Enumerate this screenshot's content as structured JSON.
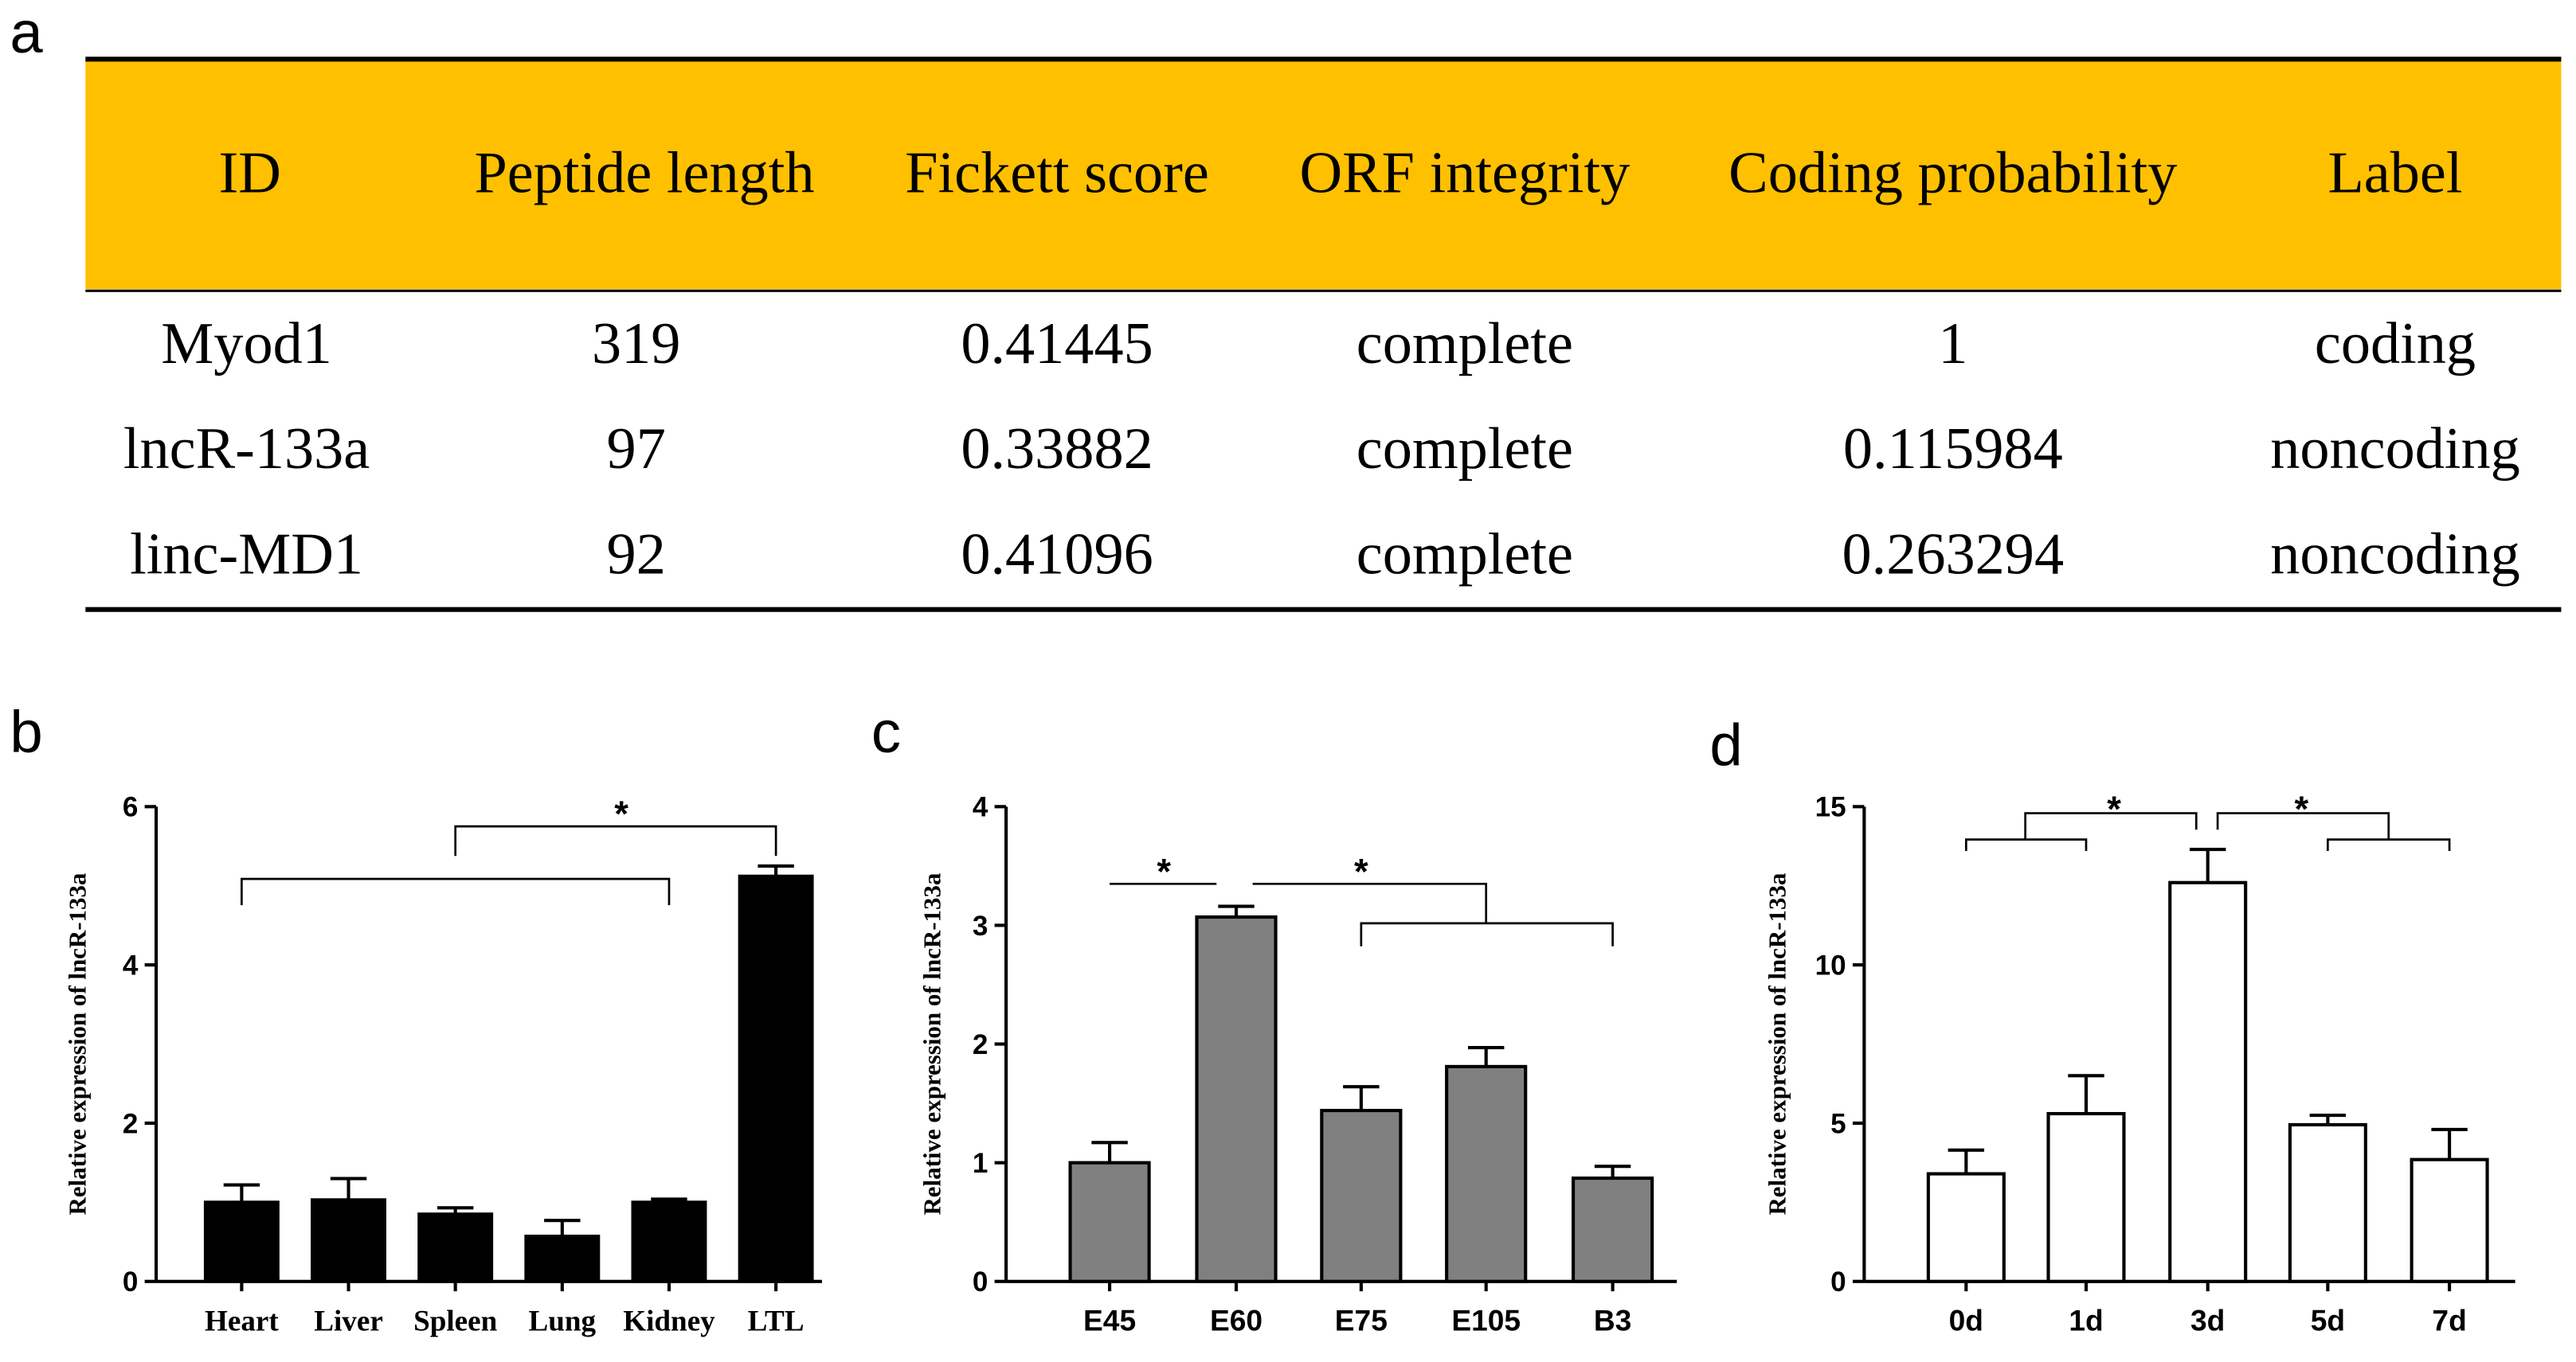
{
  "panel_labels": {
    "a": "a",
    "b": "b",
    "c": "c",
    "d": "d"
  },
  "colors": {
    "header_bg": "#FFC000",
    "bar_b": "#000000",
    "bar_c": "#808080",
    "bar_d": "#FFFFFF"
  },
  "table": {
    "headers": [
      "ID",
      "Peptide length",
      "Fickett score",
      "ORF integrity",
      "Coding probability",
      "Label"
    ],
    "rows": [
      [
        "Myod1",
        "319",
        "0.41445",
        "complete",
        "1",
        "coding"
      ],
      [
        "lncR-133a",
        "97",
        "0.33882",
        "complete",
        "0.115984",
        "noncoding"
      ],
      [
        "linc-MD1",
        "92",
        "0.41096",
        "complete",
        "0.263294",
        "noncoding"
      ]
    ]
  },
  "chart_data": [
    {
      "panel": "b",
      "type": "bar",
      "ylabel": "Relative expression of lncR-133a",
      "ylim": [
        0,
        6
      ],
      "yticks": [
        "0",
        "2",
        "4",
        "6"
      ],
      "categories": [
        "Heart",
        "Liver",
        "Spleen",
        "Lung",
        "Kidney",
        "LTL"
      ],
      "values": [
        1.0,
        1.03,
        0.85,
        0.57,
        1.0,
        5.12
      ],
      "errors": [
        0.22,
        0.27,
        0.08,
        0.2,
        0.04,
        0.13
      ],
      "significance": [
        {
          "label": "*",
          "comparison": "Heart–Kidney vs LTL"
        }
      ]
    },
    {
      "panel": "c",
      "type": "bar",
      "ylabel": "Relative expression of lncR-133a",
      "ylim": [
        0,
        4
      ],
      "yticks": [
        "0",
        "1",
        "2",
        "3",
        "4"
      ],
      "categories": [
        "E45",
        "E60",
        "E75",
        "E105",
        "B3"
      ],
      "values": [
        1.0,
        3.07,
        1.44,
        1.81,
        0.87
      ],
      "errors": [
        0.17,
        0.09,
        0.2,
        0.16,
        0.1
      ],
      "significance": [
        {
          "label": "*",
          "comparison": "E45 vs E60"
        },
        {
          "label": "*",
          "comparison": "E60 vs E75–B3"
        }
      ]
    },
    {
      "panel": "d",
      "type": "bar",
      "ylabel": "Relative expression of lncR-133a",
      "ylim": [
        0,
        15
      ],
      "yticks": [
        "0",
        "5",
        "10",
        "15"
      ],
      "categories": [
        "0d",
        "1d",
        "3d",
        "5d",
        "7d"
      ],
      "values": [
        3.4,
        5.3,
        12.6,
        4.95,
        3.85
      ],
      "errors": [
        0.75,
        1.2,
        1.05,
        0.3,
        0.95
      ],
      "significance": [
        {
          "label": "*",
          "comparison": "0d–1d vs 3d"
        },
        {
          "label": "*",
          "comparison": "3d vs 5d–7d"
        }
      ]
    }
  ]
}
